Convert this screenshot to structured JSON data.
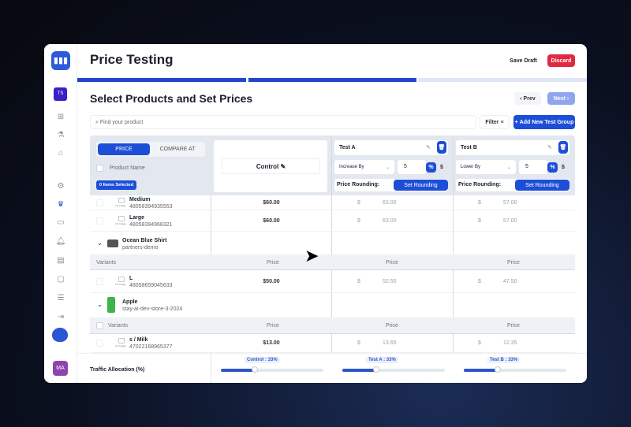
{
  "app": {
    "title": "Price Testing",
    "save_draft": "Save Draft",
    "discard": "Discard",
    "store_initials": "TS",
    "user_initials": "MA"
  },
  "colors": {
    "accent": "#1d4ed8",
    "danger": "#e02a3f",
    "progress_done": "#2148c9",
    "progress_todo": "#dfe7f7"
  },
  "steps": {
    "completed": 2,
    "total": 3
  },
  "sidebar": {
    "icons": [
      "dashboard-icon",
      "flask-icon",
      "home-icon",
      "settings-icon",
      "crown-icon",
      "ticket-icon",
      "bell-icon",
      "clipboard-icon",
      "chat-icon",
      "database-icon",
      "logout-icon"
    ]
  },
  "page": {
    "heading": "Select Products and Set Prices",
    "prev": "Prev",
    "next": "Next",
    "search_placeholder": "Find your product",
    "filter": "Filter",
    "add_group": "Add New Test Group"
  },
  "table": {
    "tabs": [
      "PRICE",
      "COMPARE AT"
    ],
    "product_name": "Product Name",
    "selected": "0 Items Selected",
    "control": "Control",
    "tests": [
      {
        "name": "Test A",
        "mode": "Increase By",
        "amount": "5",
        "unit_pct": "%",
        "unit_dollar": "$",
        "rounding_label": "Price Rounding:",
        "rounding_btn": "Set Rounding"
      },
      {
        "name": "Test B",
        "mode": "Lower By",
        "amount": "5",
        "unit_pct": "%",
        "unit_dollar": "$",
        "rounding_label": "Price Rounding:",
        "rounding_btn": "Set Rounding"
      }
    ],
    "rows": [
      {
        "name": "Medium",
        "sku": "48058394935553",
        "control": "$60.00",
        "a": "63.00",
        "b": "57.00"
      },
      {
        "name": "Large",
        "sku": "48058394968321",
        "control": "$60.00",
        "a": "63.00",
        "b": "57.00"
      }
    ],
    "products": [
      {
        "name": "Ocean Blue Shirt",
        "store": "partners-demo",
        "variants_label": "Variants",
        "price_label": "Price",
        "variant": {
          "name": "L",
          "sku": "48058659045633",
          "control": "$50.00",
          "a": "52.50",
          "b": "47.50"
        }
      },
      {
        "name": "Apple",
        "store": "stay-ai-dev-store-3-2024",
        "variants_label": "Variants",
        "price_label": "Price",
        "variant": {
          "name": "s / Milk",
          "sku": "47022168965377",
          "control": "$13.00",
          "a": "13.65",
          "b": "12.35"
        }
      }
    ],
    "no_image": "No Image",
    "currency": "$"
  },
  "traffic": {
    "label": "Traffic Allocation (%)",
    "control": "Control : 33%",
    "a": "Test A : 33%",
    "b": "Test B : 33%",
    "values": [
      33,
      33,
      33
    ]
  }
}
